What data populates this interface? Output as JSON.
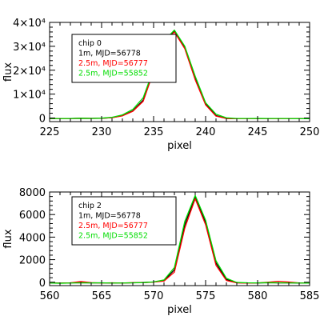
{
  "chart_data": [
    {
      "type": "line",
      "xlabel": "pixel",
      "ylabel": "flux",
      "xlim": [
        225,
        250
      ],
      "ylim": [
        -1500,
        40000
      ],
      "xticks": [
        225,
        230,
        235,
        240,
        245,
        250
      ],
      "xtick_labels": [
        "225",
        "230",
        "235",
        "240",
        "245",
        "250"
      ],
      "yticks": [
        0,
        10000,
        20000,
        30000,
        40000
      ],
      "ytick_labels": [
        "0",
        "1×10⁴",
        "2×10⁴",
        "3×10⁴",
        "4×10⁴"
      ],
      "grid": false,
      "legend_position": "top-left",
      "legend": [
        {
          "text": "chip 0",
          "color": "#000000"
        },
        {
          "text": "1m, MJD=56778",
          "color": "#000000"
        },
        {
          "text": "2.5m, MJD=56777",
          "color": "#ff0000"
        },
        {
          "text": "2.5m, MJD=55852",
          "color": "#00dd00"
        }
      ],
      "series": [
        {
          "color": "#000000",
          "x": [
            225,
            226,
            227,
            228,
            229,
            230,
            231,
            232,
            233,
            234,
            235,
            236,
            237,
            238,
            239,
            240,
            241,
            242,
            243,
            244,
            245,
            246,
            247,
            248,
            249,
            250
          ],
          "y": [
            -250,
            -300,
            -200,
            -100,
            -150,
            -100,
            150,
            1000,
            3000,
            7500,
            20000,
            32000,
            36500,
            29500,
            17000,
            6000,
            1000,
            -200,
            -300,
            -300,
            -200,
            -250,
            -200,
            -300,
            -250,
            -250
          ]
        },
        {
          "color": "#ff0000",
          "x": [
            225,
            226,
            227,
            228,
            229,
            230,
            231,
            232,
            233,
            234,
            235,
            236,
            237,
            238,
            239,
            240,
            241,
            242,
            243,
            244,
            245,
            246,
            247,
            248,
            249,
            250
          ],
          "y": [
            -200,
            -300,
            -250,
            -100,
            -150,
            -100,
            150,
            900,
            2800,
            7000,
            19500,
            31500,
            36000,
            29000,
            16000,
            5500,
            800,
            -200,
            -300,
            -300,
            -250,
            -250,
            -300,
            -300,
            -300,
            -250
          ]
        },
        {
          "color": "#00dd00",
          "x": [
            225,
            226,
            227,
            228,
            229,
            230,
            231,
            232,
            233,
            234,
            235,
            236,
            237,
            238,
            239,
            240,
            241,
            242,
            243,
            244,
            245,
            246,
            247,
            248,
            249,
            250
          ],
          "y": [
            -200,
            -250,
            -200,
            -100,
            -150,
            -50,
            300,
            1300,
            3600,
            8500,
            20500,
            32200,
            36800,
            30000,
            17500,
            6400,
            1600,
            100,
            -200,
            -200,
            -150,
            -200,
            -200,
            -250,
            -300,
            -300
          ]
        }
      ]
    },
    {
      "type": "line",
      "xlabel": "pixel",
      "ylabel": "flux",
      "xlim": [
        560,
        585
      ],
      "ylim": [
        -300,
        8000
      ],
      "xticks": [
        560,
        565,
        570,
        575,
        580,
        585
      ],
      "xtick_labels": [
        "560",
        "565",
        "570",
        "575",
        "580",
        "585"
      ],
      "yticks": [
        0,
        2000,
        4000,
        6000,
        8000
      ],
      "ytick_labels": [
        "0",
        "2000",
        "4000",
        "6000",
        "8000"
      ],
      "grid": false,
      "legend_position": "top-left",
      "legend": [
        {
          "text": "chip 2",
          "color": "#000000"
        },
        {
          "text": "1m, MJD=56778",
          "color": "#000000"
        },
        {
          "text": "2.5m, MJD=56777",
          "color": "#ff0000"
        },
        {
          "text": "2.5m, MJD=55852",
          "color": "#00dd00"
        }
      ],
      "series": [
        {
          "color": "#000000",
          "x": [
            560,
            561,
            562,
            563,
            564,
            565,
            566,
            567,
            568,
            569,
            570,
            571,
            572,
            573,
            574,
            575,
            576,
            577,
            578,
            579,
            580,
            581,
            582,
            583,
            584,
            585
          ],
          "y": [
            -50,
            -80,
            -60,
            -40,
            -60,
            -50,
            -80,
            -60,
            -50,
            -20,
            20,
            150,
            1100,
            5100,
            7600,
            5300,
            1700,
            250,
            -50,
            -60,
            -70,
            -40,
            -60,
            -50,
            -80,
            -70
          ]
        },
        {
          "color": "#ff0000",
          "x": [
            560,
            561,
            562,
            563,
            564,
            565,
            566,
            567,
            568,
            569,
            570,
            571,
            572,
            573,
            574,
            575,
            576,
            577,
            578,
            579,
            580,
            581,
            582,
            583,
            584,
            585
          ],
          "y": [
            -60,
            -80,
            -50,
            60,
            -40,
            -70,
            -50,
            -70,
            -40,
            -40,
            10,
            100,
            900,
            4800,
            7400,
            5100,
            1500,
            150,
            -60,
            -80,
            -60,
            0,
            80,
            20,
            -60,
            -80
          ]
        },
        {
          "color": "#00dd00",
          "x": [
            560,
            561,
            562,
            563,
            564,
            565,
            566,
            567,
            568,
            569,
            570,
            571,
            572,
            573,
            574,
            575,
            576,
            577,
            578,
            579,
            580,
            581,
            582,
            583,
            584,
            585
          ],
          "y": [
            -70,
            -90,
            -70,
            -50,
            -60,
            -60,
            -70,
            -70,
            -50,
            -40,
            30,
            200,
            1300,
            5400,
            7700,
            5500,
            1900,
            350,
            -20,
            -50,
            -60,
            -40,
            -50,
            -60,
            -70,
            -80
          ]
        }
      ]
    }
  ]
}
